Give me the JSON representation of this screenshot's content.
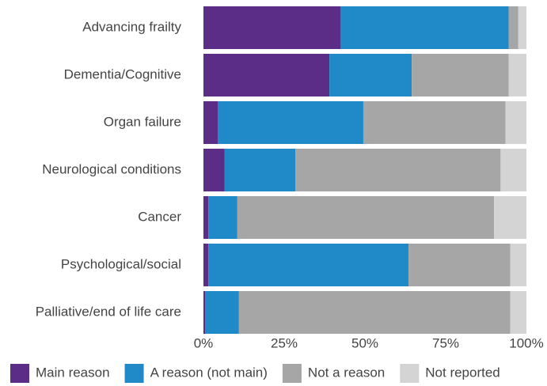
{
  "chart_data": {
    "type": "stacked-barh",
    "categories": [
      "Advancing frailty",
      "Dementia/Cognitive",
      "Organ failure",
      "Neurological conditions",
      "Cancer",
      "Psychological/social",
      "Palliative/end of life care"
    ],
    "series": [
      {
        "name": "Main reason",
        "color": "#5b2d86",
        "values": [
          42.5,
          39,
          4.5,
          6.5,
          1.5,
          1.5,
          0.5
        ]
      },
      {
        "name": "A reason (not main)",
        "color": "#1f8ac7",
        "values": [
          52,
          25.5,
          45,
          22,
          9,
          62,
          10.5
        ]
      },
      {
        "name": "Not a reason",
        "color": "#a6a6a6",
        "values": [
          3,
          30,
          44,
          63.5,
          79.5,
          31.5,
          84
        ]
      },
      {
        "name": "Not reported",
        "color": "#d4d4d4",
        "values": [
          2.5,
          5.5,
          6.5,
          8,
          10,
          5,
          5
        ]
      }
    ],
    "xlim": [
      0,
      100
    ],
    "xticks": [
      {
        "value": 0,
        "label": "0%"
      },
      {
        "value": 25,
        "label": "25%"
      },
      {
        "value": 50,
        "label": "50%"
      },
      {
        "value": 75,
        "label": "75%"
      },
      {
        "value": 100,
        "label": "100%"
      }
    ],
    "legend": "bottom"
  }
}
